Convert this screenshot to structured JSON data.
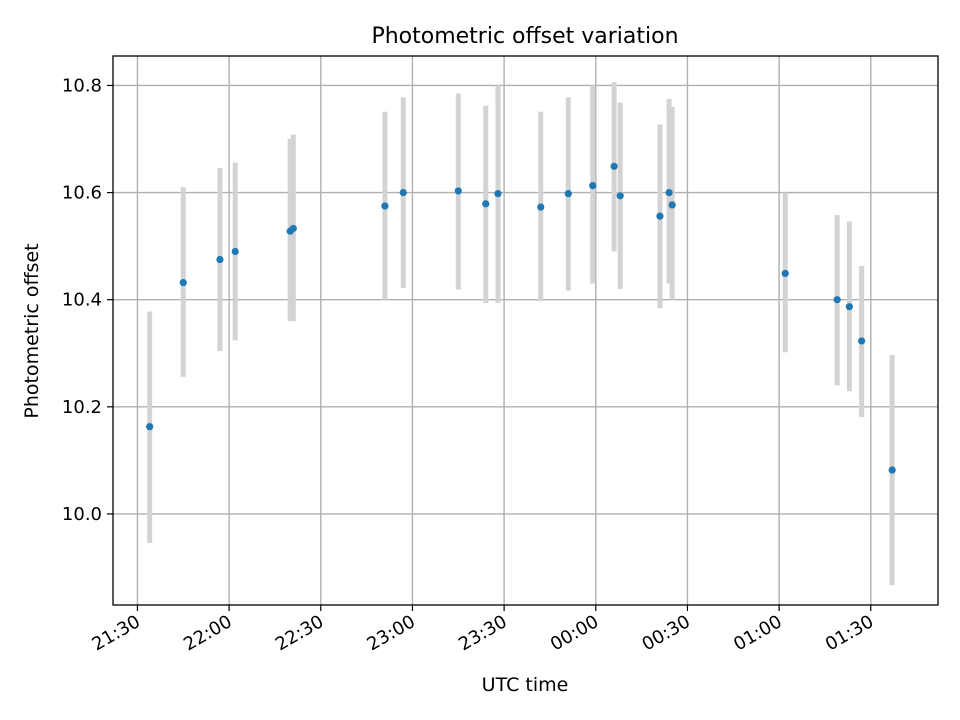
{
  "chart_data": {
    "type": "scatter",
    "title": "Photometric offset variation",
    "xlabel": "UTC time",
    "ylabel": "Photometric offset",
    "x_tick_labels": [
      "21:30",
      "22:00",
      "22:30",
      "23:00",
      "23:30",
      "00:00",
      "00:30",
      "01:00",
      "01:30"
    ],
    "y_ticks": [
      10.0,
      10.2,
      10.4,
      10.6,
      10.8
    ],
    "y_tick_labels": [
      "10.0",
      "10.2",
      "10.4",
      "10.6",
      "10.8"
    ],
    "xlim": [
      "21:22",
      "01:52"
    ],
    "ylim": [
      9.83,
      10.855
    ],
    "grid": true,
    "colors": {
      "points": "#1f77b4",
      "errorbars": "#d3d3d3"
    },
    "points": [
      {
        "x": "21:34",
        "y": 10.163,
        "ylo": 9.946,
        "yhi": 10.378
      },
      {
        "x": "21:45",
        "y": 10.432,
        "ylo": 10.256,
        "yhi": 10.61
      },
      {
        "x": "21:57",
        "y": 10.475,
        "ylo": 10.304,
        "yhi": 10.646
      },
      {
        "x": "22:02",
        "y": 10.49,
        "ylo": 10.324,
        "yhi": 10.656
      },
      {
        "x": "22:20",
        "y": 10.528,
        "ylo": 10.36,
        "yhi": 10.7
      },
      {
        "x": "22:21",
        "y": 10.533,
        "ylo": 10.36,
        "yhi": 10.708
      },
      {
        "x": "22:51",
        "y": 10.575,
        "ylo": 10.4,
        "yhi": 10.751
      },
      {
        "x": "22:57",
        "y": 10.6,
        "ylo": 10.422,
        "yhi": 10.778
      },
      {
        "x": "23:15",
        "y": 10.603,
        "ylo": 10.419,
        "yhi": 10.785
      },
      {
        "x": "23:24",
        "y": 10.579,
        "ylo": 10.394,
        "yhi": 10.762
      },
      {
        "x": "23:28",
        "y": 10.598,
        "ylo": 10.394,
        "yhi": 10.8
      },
      {
        "x": "23:42",
        "y": 10.573,
        "ylo": 10.397,
        "yhi": 10.751
      },
      {
        "x": "23:51",
        "y": 10.598,
        "ylo": 10.417,
        "yhi": 10.778
      },
      {
        "x": "23:59",
        "y": 10.613,
        "ylo": 10.43,
        "yhi": 10.8
      },
      {
        "x": "00:06",
        "y": 10.649,
        "ylo": 10.49,
        "yhi": 10.806
      },
      {
        "x": "00:08",
        "y": 10.594,
        "ylo": 10.42,
        "yhi": 10.768
      },
      {
        "x": "00:21",
        "y": 10.556,
        "ylo": 10.384,
        "yhi": 10.727
      },
      {
        "x": "00:24",
        "y": 10.6,
        "ylo": 10.43,
        "yhi": 10.775
      },
      {
        "x": "00:25",
        "y": 10.577,
        "ylo": 10.4,
        "yhi": 10.76
      },
      {
        "x": "01:02",
        "y": 10.449,
        "ylo": 10.302,
        "yhi": 10.6
      },
      {
        "x": "01:19",
        "y": 10.4,
        "ylo": 10.24,
        "yhi": 10.558
      },
      {
        "x": "01:23",
        "y": 10.387,
        "ylo": 10.229,
        "yhi": 10.546
      },
      {
        "x": "01:27",
        "y": 10.323,
        "ylo": 10.181,
        "yhi": 10.463
      },
      {
        "x": "01:37",
        "y": 10.082,
        "ylo": 9.867,
        "yhi": 10.297
      }
    ]
  }
}
